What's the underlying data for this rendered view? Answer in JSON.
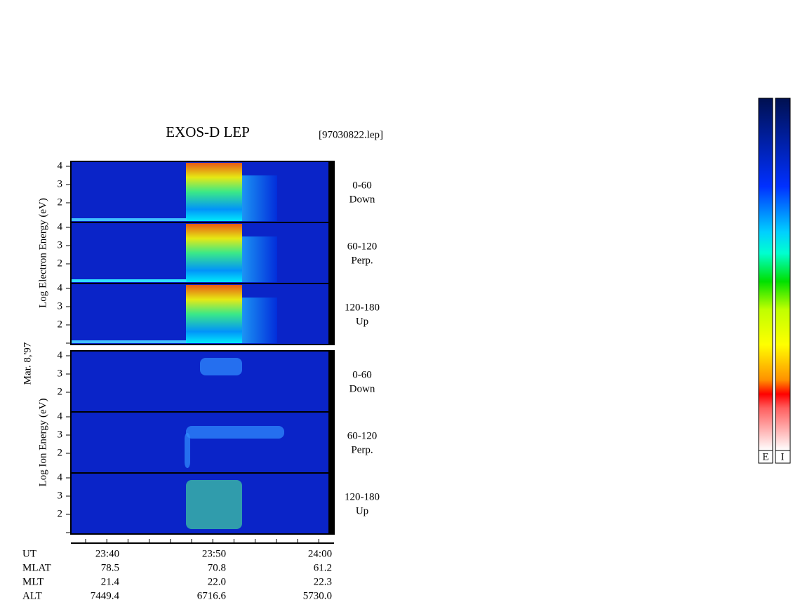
{
  "title": "EXOS-D LEP",
  "file": "[97030822.lep]",
  "date": "Mar. 8,'97",
  "groups": [
    {
      "axis_label": "Log   Electron  Energy (eV)",
      "panels": [
        {
          "ticks": [
            "4",
            "3",
            "2"
          ],
          "label": [
            "0-60",
            "Down"
          ]
        },
        {
          "ticks": [
            "4",
            "3",
            "2"
          ],
          "label": [
            "60-120",
            "Perp."
          ]
        },
        {
          "ticks": [
            "4",
            "3",
            "2"
          ],
          "label": [
            "120-180",
            "Up"
          ]
        }
      ]
    },
    {
      "axis_label": "Log   Ion  Energy (eV)",
      "panels": [
        {
          "ticks": [
            "4",
            "3",
            "2"
          ],
          "label": [
            "0-60",
            "Down"
          ]
        },
        {
          "ticks": [
            "4",
            "3",
            "2"
          ],
          "label": [
            "60-120",
            "Perp."
          ]
        },
        {
          "ticks": [
            "4",
            "3",
            "2"
          ],
          "label": [
            "120-180",
            "Up"
          ]
        }
      ]
    }
  ],
  "ephemeris": [
    {
      "name": "UT",
      "values": [
        "23:40",
        "23:50",
        "24:00"
      ]
    },
    {
      "name": "MLAT",
      "values": [
        "78.5",
        "70.8",
        "61.2"
      ]
    },
    {
      "name": "MLT",
      "values": [
        "21.4",
        "22.0",
        "22.3"
      ]
    },
    {
      "name": "ALT",
      "values": [
        "7449.4",
        "6716.6",
        "5730.0"
      ]
    }
  ],
  "colorbars": [
    "E",
    "I"
  ]
}
